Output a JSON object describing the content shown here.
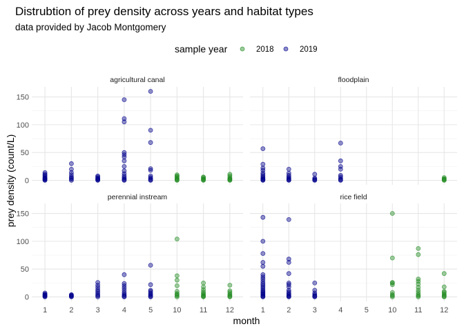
{
  "chart_data": {
    "type": "scatter",
    "title": "Distrubtion of prey density across years and habitat types",
    "subtitle": "data provided by Jacob Montgomery",
    "xlabel": "month",
    "ylabel": "prey density (count/L)",
    "x_categories": [
      "1",
      "2",
      "3",
      "4",
      "5",
      "10",
      "11",
      "12"
    ],
    "y_ticks": [
      0,
      50,
      100,
      150
    ],
    "ylim": [
      -8,
      168
    ],
    "grid": true,
    "legend": {
      "title": "sample year",
      "placement": "top",
      "entries": [
        {
          "label": "2018",
          "color": "#228B22"
        },
        {
          "label": "2019",
          "color": "#00008B"
        }
      ]
    },
    "panels": [
      {
        "name": "agricultural canal",
        "series": [
          {
            "year": "2019",
            "points": [
              [
                "1",
                0
              ],
              [
                "1",
                1
              ],
              [
                "1",
                2
              ],
              [
                "1",
                3
              ],
              [
                "1",
                4
              ],
              [
                "1",
                5
              ],
              [
                "1",
                7
              ],
              [
                "1",
                9
              ],
              [
                "1",
                11
              ],
              [
                "1",
                14
              ],
              [
                "2",
                0
              ],
              [
                "2",
                2
              ],
              [
                "2",
                4
              ],
              [
                "2",
                6
              ],
              [
                "2",
                10
              ],
              [
                "2",
                14
              ],
              [
                "2",
                20
              ],
              [
                "2",
                30
              ],
              [
                "3",
                0
              ],
              [
                "3",
                1
              ],
              [
                "3",
                2
              ],
              [
                "3",
                3
              ],
              [
                "3",
                4
              ],
              [
                "3",
                6
              ],
              [
                "3",
                8
              ],
              [
                "4",
                0
              ],
              [
                "4",
                1
              ],
              [
                "4",
                3
              ],
              [
                "4",
                5
              ],
              [
                "4",
                8
              ],
              [
                "4",
                12
              ],
              [
                "4",
                17
              ],
              [
                "4",
                25
              ],
              [
                "4",
                35
              ],
              [
                "4",
                42
              ],
              [
                "4",
                46
              ],
              [
                "4",
                50
              ],
              [
                "4",
                105
              ],
              [
                "4",
                111
              ],
              [
                "4",
                145
              ],
              [
                "5",
                0
              ],
              [
                "5",
                1
              ],
              [
                "5",
                3
              ],
              [
                "5",
                5
              ],
              [
                "5",
                8
              ],
              [
                "5",
                18
              ],
              [
                "5",
                21
              ],
              [
                "5",
                68
              ],
              [
                "5",
                90
              ],
              [
                "5",
                160
              ]
            ]
          },
          {
            "year": "2018",
            "points": [
              [
                "10",
                0
              ],
              [
                "10",
                1
              ],
              [
                "10",
                2
              ],
              [
                "10",
                4
              ],
              [
                "10",
                6
              ],
              [
                "10",
                8
              ],
              [
                "10",
                10
              ],
              [
                "11",
                0
              ],
              [
                "11",
                1
              ],
              [
                "11",
                2
              ],
              [
                "11",
                3
              ],
              [
                "11",
                5
              ],
              [
                "11",
                6
              ],
              [
                "12",
                0
              ],
              [
                "12",
                1
              ],
              [
                "12",
                2
              ],
              [
                "12",
                3
              ],
              [
                "12",
                5
              ],
              [
                "12",
                8
              ],
              [
                "12",
                11
              ]
            ]
          }
        ]
      },
      {
        "name": "floodplain",
        "series": [
          {
            "year": "2019",
            "points": [
              [
                "1",
                0
              ],
              [
                "1",
                1
              ],
              [
                "1",
                2
              ],
              [
                "1",
                3
              ],
              [
                "1",
                5
              ],
              [
                "1",
                7
              ],
              [
                "1",
                10
              ],
              [
                "1",
                13
              ],
              [
                "1",
                18
              ],
              [
                "1",
                22
              ],
              [
                "1",
                29
              ],
              [
                "1",
                57
              ],
              [
                "2",
                0
              ],
              [
                "2",
                1
              ],
              [
                "2",
                2
              ],
              [
                "2",
                4
              ],
              [
                "2",
                6
              ],
              [
                "2",
                9
              ],
              [
                "2",
                13
              ],
              [
                "2",
                20
              ],
              [
                "3",
                0
              ],
              [
                "3",
                1
              ],
              [
                "3",
                2
              ],
              [
                "3",
                4
              ],
              [
                "3",
                11
              ],
              [
                "4",
                0
              ],
              [
                "4",
                1
              ],
              [
                "4",
                3
              ],
              [
                "4",
                6
              ],
              [
                "4",
                9
              ],
              [
                "4",
                20
              ],
              [
                "4",
                25
              ],
              [
                "4",
                35
              ],
              [
                "4",
                67
              ]
            ]
          },
          {
            "year": "2018",
            "points": [
              [
                "12",
                0
              ],
              [
                "12",
                1
              ],
              [
                "12",
                2
              ],
              [
                "12",
                3
              ],
              [
                "12",
                5
              ]
            ]
          }
        ]
      },
      {
        "name": "perennial instream",
        "series": [
          {
            "year": "2019",
            "points": [
              [
                "1",
                0
              ],
              [
                "1",
                1
              ],
              [
                "1",
                2
              ],
              [
                "1",
                3
              ],
              [
                "1",
                4
              ],
              [
                "1",
                5
              ],
              [
                "1",
                7
              ],
              [
                "2",
                0
              ],
              [
                "2",
                1
              ],
              [
                "2",
                2
              ],
              [
                "2",
                3
              ],
              [
                "2",
                4
              ],
              [
                "3",
                0
              ],
              [
                "3",
                2
              ],
              [
                "3",
                4
              ],
              [
                "3",
                7
              ],
              [
                "3",
                10
              ],
              [
                "3",
                13
              ],
              [
                "3",
                17
              ],
              [
                "3",
                21
              ],
              [
                "3",
                26
              ],
              [
                "4",
                0
              ],
              [
                "4",
                1
              ],
              [
                "4",
                3
              ],
              [
                "4",
                5
              ],
              [
                "4",
                8
              ],
              [
                "4",
                12
              ],
              [
                "4",
                16
              ],
              [
                "4",
                20
              ],
              [
                "4",
                24
              ],
              [
                "4",
                40
              ],
              [
                "5",
                0
              ],
              [
                "5",
                1
              ],
              [
                "5",
                3
              ],
              [
                "5",
                5
              ],
              [
                "5",
                7
              ],
              [
                "5",
                10
              ],
              [
                "5",
                12
              ],
              [
                "5",
                22
              ],
              [
                "5",
                57
              ]
            ]
          },
          {
            "year": "2018",
            "points": [
              [
                "10",
                0
              ],
              [
                "10",
                2
              ],
              [
                "10",
                4
              ],
              [
                "10",
                6
              ],
              [
                "10",
                10
              ],
              [
                "10",
                20
              ],
              [
                "10",
                30
              ],
              [
                "10",
                38
              ],
              [
                "10",
                104
              ],
              [
                "11",
                0
              ],
              [
                "11",
                1
              ],
              [
                "11",
                2
              ],
              [
                "11",
                4
              ],
              [
                "11",
                6
              ],
              [
                "11",
                9
              ],
              [
                "11",
                13
              ],
              [
                "11",
                18
              ],
              [
                "11",
                25
              ],
              [
                "12",
                0
              ],
              [
                "12",
                1
              ],
              [
                "12",
                3
              ],
              [
                "12",
                5
              ],
              [
                "12",
                8
              ],
              [
                "12",
                11
              ],
              [
                "12",
                21
              ]
            ]
          }
        ]
      },
      {
        "name": "rice field",
        "series": [
          {
            "year": "2019",
            "points": [
              [
                "1",
                0
              ],
              [
                "1",
                1
              ],
              [
                "1",
                2
              ],
              [
                "1",
                4
              ],
              [
                "1",
                6
              ],
              [
                "1",
                8
              ],
              [
                "1",
                10
              ],
              [
                "1",
                12
              ],
              [
                "1",
                15
              ],
              [
                "1",
                18
              ],
              [
                "1",
                21
              ],
              [
                "1",
                24
              ],
              [
                "1",
                28
              ],
              [
                "1",
                32
              ],
              [
                "1",
                36
              ],
              [
                "1",
                40
              ],
              [
                "1",
                55
              ],
              [
                "1",
                62
              ],
              [
                "1",
                78
              ],
              [
                "1",
                100
              ],
              [
                "1",
                143
              ],
              [
                "2",
                0
              ],
              [
                "2",
                1
              ],
              [
                "2",
                2
              ],
              [
                "2",
                4
              ],
              [
                "2",
                6
              ],
              [
                "2",
                9
              ],
              [
                "2",
                12
              ],
              [
                "2",
                18
              ],
              [
                "2",
                22
              ],
              [
                "2",
                25
              ],
              [
                "2",
                42
              ],
              [
                "2",
                62
              ],
              [
                "2",
                68
              ],
              [
                "2",
                139
              ],
              [
                "3",
                0
              ],
              [
                "3",
                1
              ],
              [
                "3",
                2
              ],
              [
                "3",
                4
              ],
              [
                "3",
                7
              ],
              [
                "3",
                12
              ],
              [
                "3",
                25
              ]
            ]
          },
          {
            "year": "2018",
            "points": [
              [
                "10",
                0
              ],
              [
                "10",
                2
              ],
              [
                "10",
                4
              ],
              [
                "10",
                8
              ],
              [
                "10",
                22
              ],
              [
                "10",
                25
              ],
              [
                "10",
                26
              ],
              [
                "10",
                70
              ],
              [
                "10",
                150
              ],
              [
                "11",
                0
              ],
              [
                "11",
                2
              ],
              [
                "11",
                4
              ],
              [
                "11",
                8
              ],
              [
                "11",
                12
              ],
              [
                "11",
                17
              ],
              [
                "11",
                23
              ],
              [
                "11",
                28
              ],
              [
                "11",
                32
              ],
              [
                "11",
                76
              ],
              [
                "11",
                87
              ],
              [
                "12",
                0
              ],
              [
                "12",
                1
              ],
              [
                "12",
                3
              ],
              [
                "12",
                5
              ],
              [
                "12",
                8
              ],
              [
                "12",
                10
              ],
              [
                "12",
                18
              ],
              [
                "12",
                42
              ]
            ]
          }
        ]
      }
    ]
  }
}
